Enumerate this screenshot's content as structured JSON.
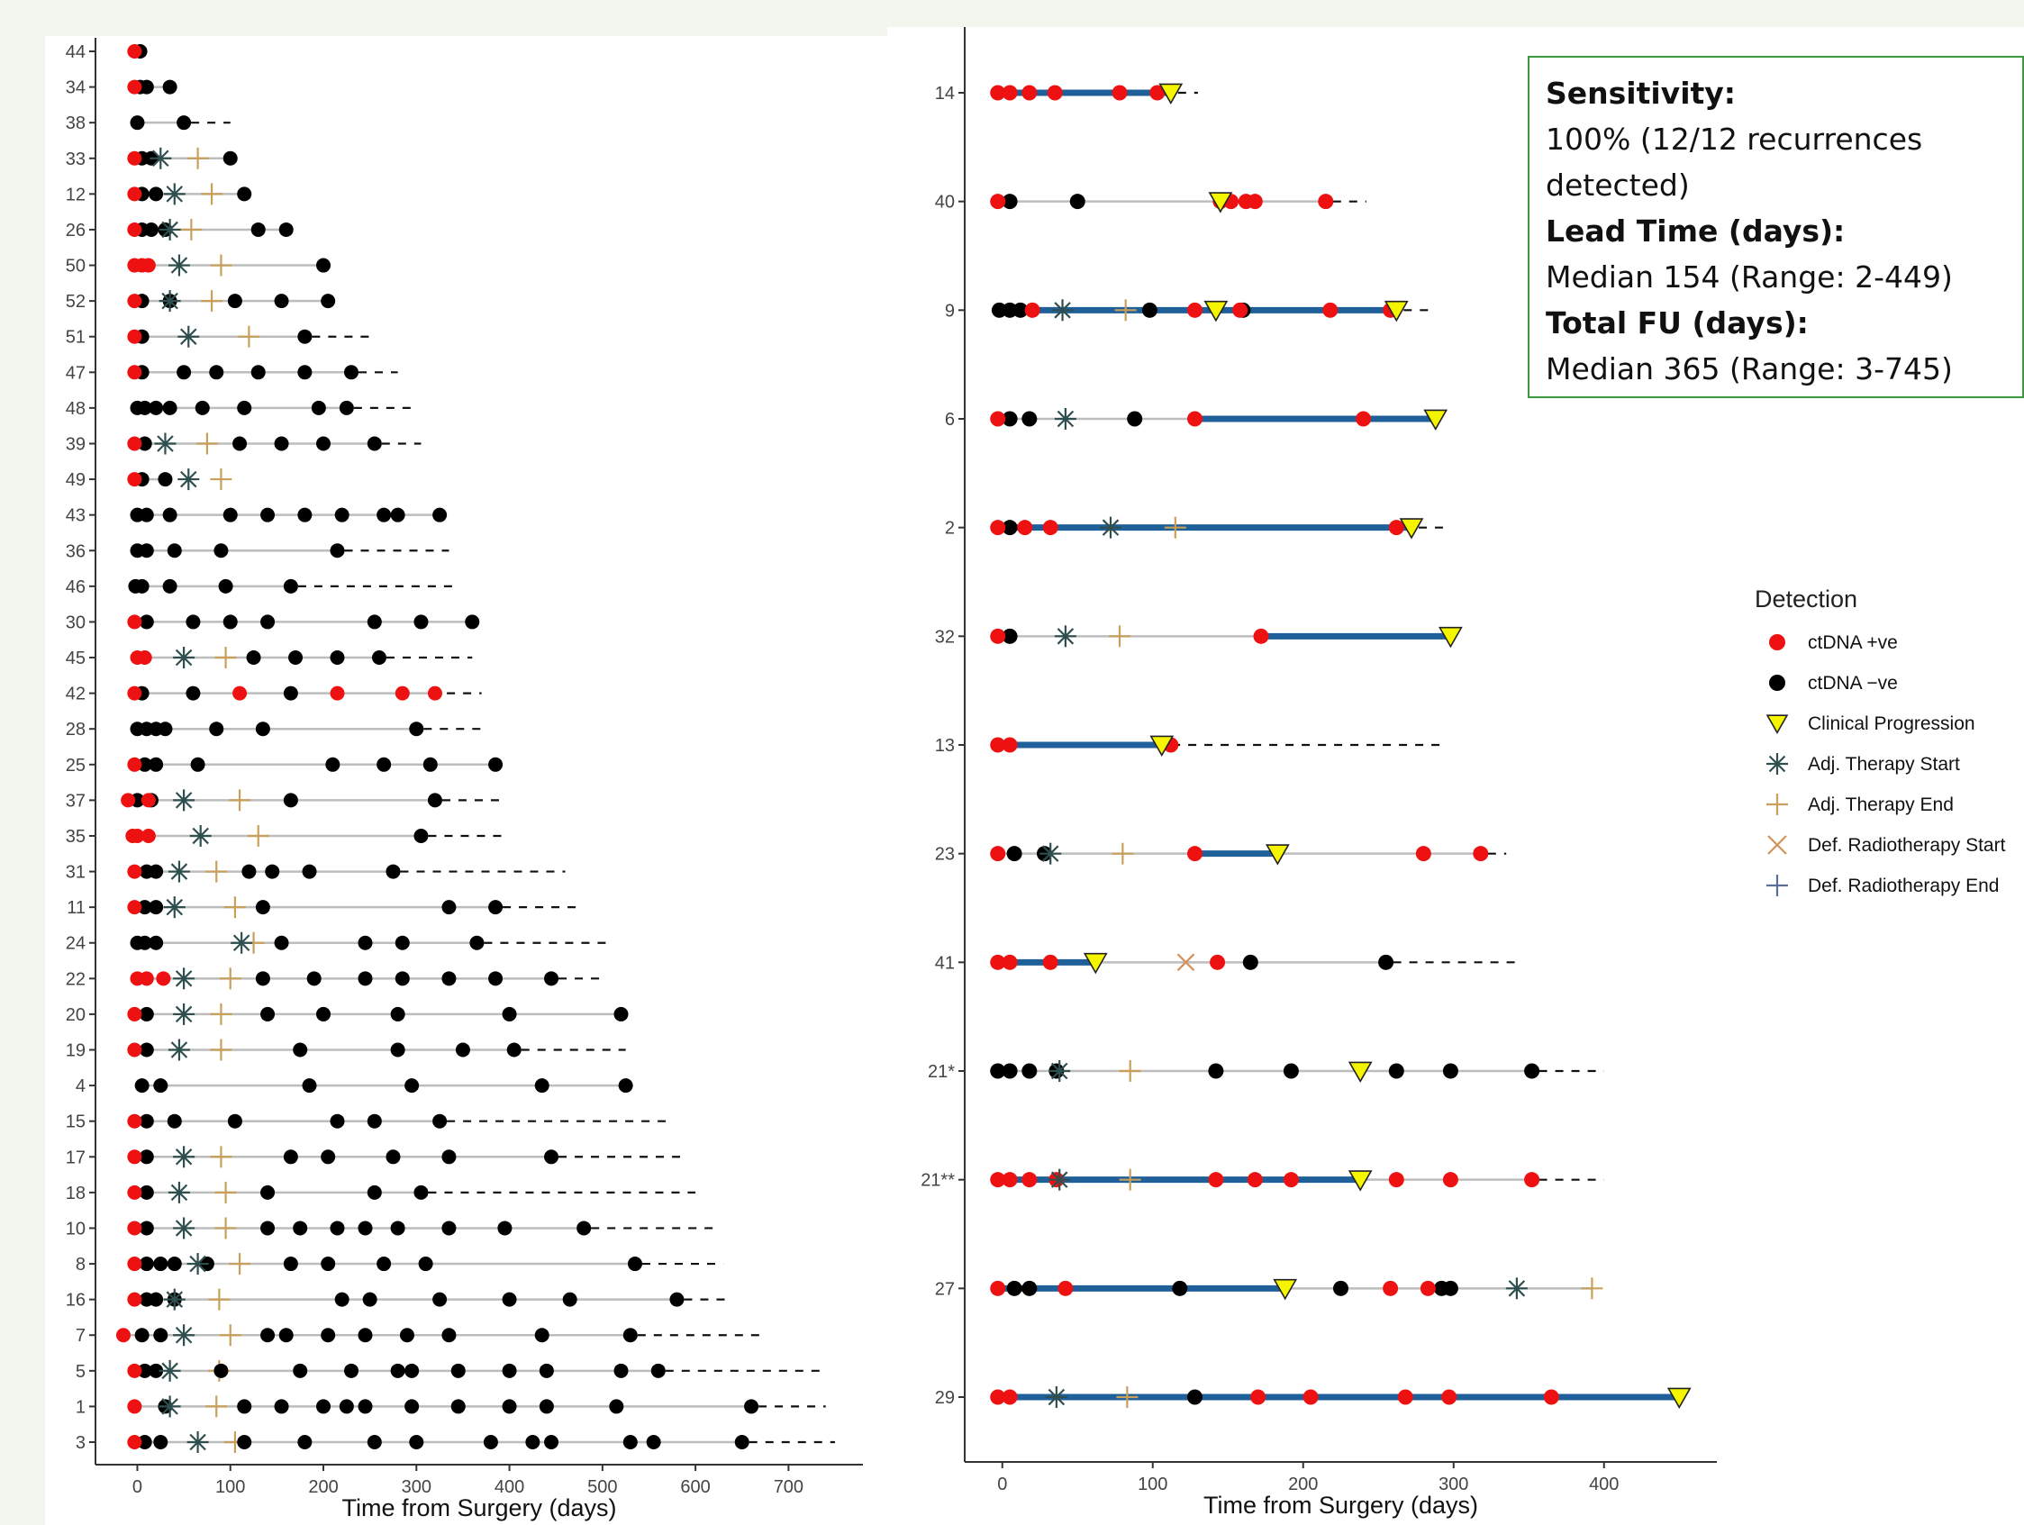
{
  "summary": {
    "sensitivity_label": "Sensitivity:",
    "sensitivity_line1": "100% (12/12 recurrences",
    "sensitivity_line2": "detected)",
    "lead_label": "Lead Time (days):",
    "lead_value": "Median 154 (Range: 2-449)",
    "fu_label": "Total FU (days):",
    "fu_value": "Median 365 (Range: 3-745)"
  },
  "legend": {
    "title": "Detection",
    "items": [
      {
        "label": "ctDNA +ve",
        "symbol": "circle-red"
      },
      {
        "label": "ctDNA −ve",
        "symbol": "circle-black"
      },
      {
        "label": "Clinical Progression",
        "symbol": "triangle-yellow"
      },
      {
        "label": "Adj. Therapy Start",
        "symbol": "asterisk"
      },
      {
        "label": "Adj. Therapy End",
        "symbol": "plus-tan"
      },
      {
        "label": "Def. Radiotherapy Start",
        "symbol": "cross-tan"
      },
      {
        "label": "Def. Radiotherapy End",
        "symbol": "plus-blue"
      }
    ]
  },
  "colors": {
    "positive": "#ee1111",
    "negative": "#000000",
    "progression": "#f5f500",
    "adj_start": "#2f4f4f",
    "adj_end": "#c8a05a",
    "def_rt_start": "#d4915a",
    "def_rt_end": "#5a6f96",
    "follow_line": "#bdbdbd",
    "positive_span": "#1f5f9a"
  },
  "chart_data": [
    {
      "type": "scatter",
      "title": "",
      "xlabel": "Time from Surgery (days)",
      "ylabel": "",
      "xlim": [
        -45,
        780
      ],
      "xticks": [
        0,
        100,
        200,
        300,
        400,
        500,
        600,
        700
      ],
      "grid": false,
      "patients": [
        {
          "id": "44",
          "end": 0,
          "dash": 0,
          "pos": [
            -3
          ],
          "neg": [
            3
          ]
        },
        {
          "id": "34",
          "end": 35,
          "dash": 0,
          "pos": [
            -3
          ],
          "neg": [
            3,
            10,
            35
          ]
        },
        {
          "id": "38",
          "end": 50,
          "dash": 100,
          "pos": [],
          "neg": [
            0,
            50
          ]
        },
        {
          "id": "33",
          "end": 100,
          "dash": 0,
          "pos": [
            -3
          ],
          "neg": [
            5,
            15,
            100
          ],
          "adj_start": 25,
          "adj_end": 65
        },
        {
          "id": "12",
          "end": 115,
          "dash": 0,
          "pos": [
            -3
          ],
          "neg": [
            5,
            20,
            115
          ],
          "adj_start": 40,
          "adj_end": 80
        },
        {
          "id": "26",
          "end": 160,
          "dash": 0,
          "pos": [
            -3
          ],
          "neg": [
            5,
            15,
            30,
            130,
            160
          ],
          "adj_start": 35,
          "adj_end": 58
        },
        {
          "id": "50",
          "end": 200,
          "dash": 0,
          "pos": [
            -3,
            5,
            12
          ],
          "neg": [
            200
          ],
          "adj_start": 45,
          "adj_end": 90
        },
        {
          "id": "52",
          "end": 205,
          "dash": 0,
          "pos": [
            -3
          ],
          "neg": [
            5,
            35,
            105,
            155,
            205
          ],
          "adj_start": 35,
          "adj_end": 80
        },
        {
          "id": "51",
          "end": 180,
          "dash": 255,
          "pos": [
            -3
          ],
          "neg": [
            5,
            180
          ],
          "adj_start": 55,
          "adj_end": 120
        },
        {
          "id": "47",
          "end": 230,
          "dash": 280,
          "pos": [
            -3
          ],
          "neg": [
            5,
            50,
            85,
            130,
            180,
            230
          ]
        },
        {
          "id": "48",
          "end": 225,
          "dash": 295,
          "pos": [],
          "neg": [
            0,
            8,
            20,
            35,
            70,
            115,
            195,
            225
          ]
        },
        {
          "id": "39",
          "end": 255,
          "dash": 305,
          "pos": [
            -3
          ],
          "neg": [
            8,
            110,
            155,
            200,
            255
          ],
          "adj_start": 30,
          "adj_end": 75
        },
        {
          "id": "49",
          "end": 30,
          "dash": 0,
          "pos": [
            -3
          ],
          "neg": [
            5,
            30
          ],
          "adj_start": 55,
          "adj_end": 90
        },
        {
          "id": "43",
          "end": 325,
          "dash": 0,
          "pos": [],
          "neg": [
            0,
            10,
            35,
            100,
            140,
            180,
            220,
            265,
            280,
            325
          ]
        },
        {
          "id": "36",
          "end": 215,
          "dash": 335,
          "pos": [],
          "neg": [
            0,
            10,
            40,
            90,
            215
          ]
        },
        {
          "id": "46",
          "end": 165,
          "dash": 340,
          "pos": [],
          "neg": [
            -2,
            5,
            35,
            95,
            165
          ]
        },
        {
          "id": "30",
          "end": 360,
          "dash": 0,
          "pos": [
            -3
          ],
          "neg": [
            10,
            60,
            100,
            140,
            255,
            305,
            360
          ]
        },
        {
          "id": "45",
          "end": 260,
          "dash": 360,
          "pos": [
            0,
            8
          ],
          "neg": [
            125,
            170,
            215,
            260
          ],
          "adj_start": 50,
          "adj_end": 95
        },
        {
          "id": "42",
          "end": 325,
          "dash": 370,
          "pos": [
            -3,
            110,
            215,
            285,
            320
          ],
          "neg": [
            5,
            60,
            165
          ]
        },
        {
          "id": "28",
          "end": 300,
          "dash": 375,
          "pos": [],
          "neg": [
            0,
            10,
            20,
            30,
            85,
            135,
            300
          ]
        },
        {
          "id": "25",
          "end": 385,
          "dash": 0,
          "pos": [
            -3
          ],
          "neg": [
            8,
            20,
            65,
            210,
            265,
            315,
            385
          ]
        },
        {
          "id": "37",
          "end": 320,
          "dash": 390,
          "pos": [
            -10,
            12
          ],
          "neg": [
            0,
            15,
            165,
            320
          ],
          "adj_start": 50,
          "adj_end": 110
        },
        {
          "id": "35",
          "end": 305,
          "dash": 395,
          "pos": [
            -5,
            0,
            12
          ],
          "neg": [
            305
          ],
          "adj_start": 68,
          "adj_end": 130
        },
        {
          "id": "31",
          "end": 275,
          "dash": 460,
          "pos": [
            -3
          ],
          "neg": [
            10,
            20,
            120,
            145,
            185,
            275
          ],
          "adj_start": 45,
          "adj_end": 85
        },
        {
          "id": "11",
          "end": 385,
          "dash": 475,
          "pos": [
            -3
          ],
          "neg": [
            8,
            20,
            135,
            335,
            385
          ],
          "adj_start": 40,
          "adj_end": 105
        },
        {
          "id": "24",
          "end": 365,
          "dash": 510,
          "pos": [],
          "neg": [
            0,
            8,
            20,
            155,
            245,
            285,
            365
          ],
          "adj_start": 112,
          "adj_end": 125
        },
        {
          "id": "22",
          "end": 445,
          "dash": 505,
          "pos": [
            0,
            10,
            28
          ],
          "neg": [
            135,
            190,
            245,
            285,
            335,
            385,
            445
          ],
          "adj_start": 50,
          "adj_end": 100
        },
        {
          "id": "20",
          "end": 520,
          "dash": 0,
          "pos": [
            -3
          ],
          "neg": [
            10,
            140,
            200,
            280,
            400,
            520
          ],
          "adj_start": 50,
          "adj_end": 90
        },
        {
          "id": "19",
          "end": 405,
          "dash": 525,
          "pos": [
            -3
          ],
          "neg": [
            10,
            175,
            280,
            350,
            405
          ],
          "adj_start": 45,
          "adj_end": 90
        },
        {
          "id": "4",
          "end": 525,
          "dash": 0,
          "pos": [],
          "neg": [
            5,
            25,
            185,
            295,
            435,
            525
          ]
        },
        {
          "id": "15",
          "end": 325,
          "dash": 575,
          "pos": [
            -3
          ],
          "neg": [
            10,
            40,
            105,
            215,
            255,
            325
          ]
        },
        {
          "id": "17",
          "end": 445,
          "dash": 590,
          "pos": [
            -3
          ],
          "neg": [
            10,
            165,
            205,
            275,
            335,
            445
          ],
          "adj_start": 50,
          "adj_end": 90
        },
        {
          "id": "18",
          "end": 305,
          "dash": 600,
          "pos": [
            -3
          ],
          "neg": [
            10,
            140,
            255,
            305
          ],
          "adj_start": 45,
          "adj_end": 95
        },
        {
          "id": "10",
          "end": 480,
          "dash": 625,
          "pos": [
            -3
          ],
          "neg": [
            10,
            140,
            175,
            215,
            245,
            280,
            335,
            395,
            480
          ],
          "adj_start": 50,
          "adj_end": 95
        },
        {
          "id": "8",
          "end": 535,
          "dash": 630,
          "pos": [
            -3
          ],
          "neg": [
            10,
            25,
            40,
            75,
            165,
            205,
            265,
            310,
            535
          ],
          "adj_start": 65,
          "adj_end": 110
        },
        {
          "id": "16",
          "end": 580,
          "dash": 635,
          "pos": [
            -3
          ],
          "neg": [
            10,
            20,
            40,
            220,
            250,
            325,
            400,
            465,
            580
          ],
          "adj_start": 40,
          "adj_end": 88
        },
        {
          "id": "7",
          "end": 530,
          "dash": 670,
          "pos": [
            -15
          ],
          "neg": [
            5,
            25,
            140,
            160,
            205,
            245,
            290,
            335,
            435,
            530
          ],
          "adj_start": 50,
          "adj_end": 100
        },
        {
          "id": "5",
          "end": 560,
          "dash": 740,
          "pos": [
            -3
          ],
          "neg": [
            8,
            20,
            90,
            175,
            230,
            280,
            295,
            345,
            400,
            440,
            520,
            560
          ],
          "adj_start": 35,
          "adj_end": 88
        },
        {
          "id": "1",
          "end": 660,
          "dash": 740,
          "pos": [
            -3
          ],
          "neg": [
            30,
            115,
            155,
            200,
            225,
            245,
            295,
            345,
            400,
            440,
            515,
            660
          ],
          "adj_start": 35,
          "adj_end": 85
        },
        {
          "id": "3",
          "end": 650,
          "dash": 750,
          "pos": [
            -3
          ],
          "neg": [
            8,
            25,
            115,
            180,
            255,
            300,
            380,
            425,
            445,
            530,
            555,
            650
          ],
          "adj_start": 65,
          "adj_end": 105
        }
      ]
    },
    {
      "type": "scatter",
      "title": "",
      "xlabel": "Time from Surgery (days)",
      "ylabel": "",
      "xlim": [
        -25,
        475
      ],
      "xticks": [
        0,
        100,
        200,
        300,
        400
      ],
      "grid": false,
      "patients": [
        {
          "id": "14",
          "end": 112,
          "dash": 130,
          "span": [
            0,
            112
          ],
          "pos": [
            -3,
            5,
            18,
            35,
            78,
            103
          ],
          "neg": [],
          "prog": [
            112
          ]
        },
        {
          "id": "40",
          "end": 215,
          "dash": 242,
          "span": null,
          "pos": [
            -3,
            145,
            152,
            162,
            168,
            215
          ],
          "neg": [
            5,
            50
          ],
          "prog": [
            145
          ]
        },
        {
          "id": "9",
          "end": 262,
          "dash": 283,
          "span": [
            0,
            262
          ],
          "pos": [
            20,
            128,
            158,
            218,
            258
          ],
          "neg": [
            -2,
            5,
            12,
            98,
            160
          ],
          "prog": [
            142,
            262
          ],
          "adj_start": 40,
          "adj_end": 82
        },
        {
          "id": "6",
          "end": 288,
          "dash": 0,
          "span": [
            128,
            288
          ],
          "pos": [
            -3,
            128,
            240
          ],
          "neg": [
            5,
            18,
            88
          ],
          "prog": [
            288
          ],
          "adj_start": 42
        },
        {
          "id": "2",
          "end": 272,
          "dash": 293,
          "span": [
            0,
            272
          ],
          "pos": [
            -3,
            15,
            32,
            262
          ],
          "neg": [
            5
          ],
          "prog": [
            272
          ],
          "adj_start": 72,
          "adj_end": 115
        },
        {
          "id": "32",
          "end": 298,
          "dash": 0,
          "span": [
            172,
            298
          ],
          "pos": [
            -3,
            172
          ],
          "neg": [
            5
          ],
          "prog": [
            298
          ],
          "adj_start": 42,
          "adj_end": 78
        },
        {
          "id": "13",
          "end": 108,
          "dash": 295,
          "span": [
            0,
            108
          ],
          "pos": [
            -3,
            5,
            112
          ],
          "neg": [],
          "prog": [
            106
          ]
        },
        {
          "id": "23",
          "end": 318,
          "dash": 335,
          "span": [
            128,
            183
          ],
          "pos": [
            -3,
            128,
            280,
            318
          ],
          "neg": [
            8,
            28
          ],
          "prog": [
            183
          ],
          "adj_start": 32,
          "adj_end": 80
        },
        {
          "id": "41",
          "end": 255,
          "dash": 342,
          "span": [
            0,
            62
          ],
          "pos": [
            -3,
            5,
            32,
            143
          ],
          "neg": [
            165,
            255
          ],
          "prog": [
            62
          ],
          "def_start": 122
        },
        {
          "id": "21*",
          "end": 352,
          "dash": 400,
          "span": null,
          "pos": [],
          "neg": [
            -3,
            5,
            18,
            36,
            142,
            192,
            262,
            298,
            352
          ],
          "prog": [
            238
          ],
          "adj_start": 38,
          "adj_end": 85
        },
        {
          "id": "21**",
          "end": 352,
          "dash": 400,
          "span": [
            0,
            238
          ],
          "pos": [
            -3,
            5,
            18,
            36,
            142,
            168,
            192,
            262,
            298,
            352
          ],
          "neg": [],
          "prog": [
            238
          ],
          "adj_start": 38,
          "adj_end": 85
        },
        {
          "id": "27",
          "end": 392,
          "dash": 0,
          "span": [
            0,
            188
          ],
          "pos": [
            -3,
            42,
            258,
            283
          ],
          "neg": [
            8,
            18,
            118,
            225,
            292,
            298
          ],
          "prog": [
            188
          ],
          "adj_start": 342,
          "adj_end": 392
        },
        {
          "id": "29",
          "end": 450,
          "dash": 0,
          "span": [
            0,
            450
          ],
          "pos": [
            -3,
            5,
            170,
            205,
            268,
            297,
            365
          ],
          "neg": [
            128
          ],
          "prog": [
            450
          ],
          "adj_start": 36,
          "adj_end": 83
        }
      ]
    }
  ]
}
